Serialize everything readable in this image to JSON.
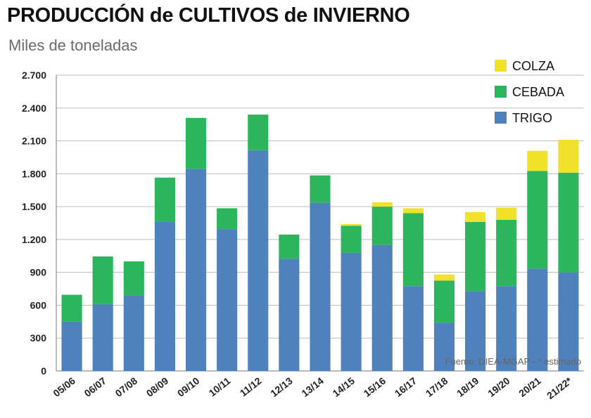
{
  "header": {
    "title": "PRODUCCIÓN de CULTIVOS de INVIERNO",
    "subtitle": "Miles de toneladas"
  },
  "source_note": "Fuente: DIEA-MGAP - * estimado",
  "chart_data": {
    "type": "bar",
    "stacked": true,
    "categories": [
      "05/06",
      "06/07",
      "07/08",
      "08/09",
      "09/10",
      "10/11",
      "11/12",
      "12/13",
      "13/14",
      "14/15",
      "15/16",
      "16/17",
      "17/18",
      "18/19",
      "19/20",
      "20/21",
      "21/22*"
    ],
    "series": [
      {
        "name": "TRIGO",
        "color": "#4f81bd",
        "values": [
          450,
          610,
          690,
          1360,
          1845,
          1295,
          2015,
          1025,
          1535,
          1080,
          1150,
          775,
          440,
          730,
          775,
          935,
          900
        ]
      },
      {
        "name": "CEBADA",
        "color": "#2db55d",
        "values": [
          245,
          435,
          310,
          405,
          465,
          190,
          325,
          220,
          250,
          245,
          350,
          665,
          385,
          630,
          605,
          890,
          910
        ]
      },
      {
        "name": "COLZA",
        "color": "#f2e12b",
        "values": [
          0,
          0,
          0,
          0,
          0,
          0,
          0,
          0,
          0,
          15,
          40,
          45,
          55,
          90,
          110,
          185,
          300
        ]
      }
    ],
    "ylim": [
      0,
      2700
    ],
    "yticks": [
      0,
      300,
      600,
      900,
      1200,
      1500,
      1800,
      2100,
      2400,
      2700
    ],
    "ytick_labels": [
      "0",
      "300",
      "600",
      "900",
      "1.200",
      "1.500",
      "1.800",
      "2.100",
      "2.400",
      "2.700"
    ],
    "legend_order": [
      "COLZA",
      "CEBADA",
      "TRIGO"
    ],
    "legend_position": "top-right",
    "grid": true
  }
}
